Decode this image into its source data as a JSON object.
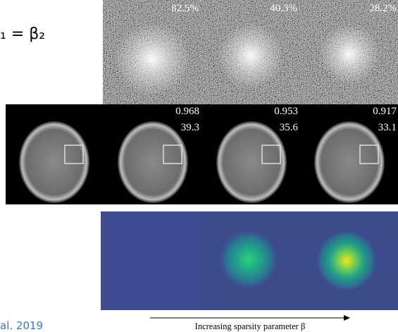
{
  "equation": "₁ = β₂",
  "citation": "al. 2019",
  "noise_row": {
    "labels": [
      "82.5%",
      "40.3%",
      "28.2%"
    ]
  },
  "brain_row": {
    "panels": [
      {
        "ssim": "0.968",
        "psnr": "39.3"
      },
      {
        "ssim": "0.953",
        "psnr": "35.6"
      },
      {
        "ssim": "0.917",
        "psnr": "33.1"
      }
    ]
  },
  "caption": "Increasing sparsity parameter β"
}
